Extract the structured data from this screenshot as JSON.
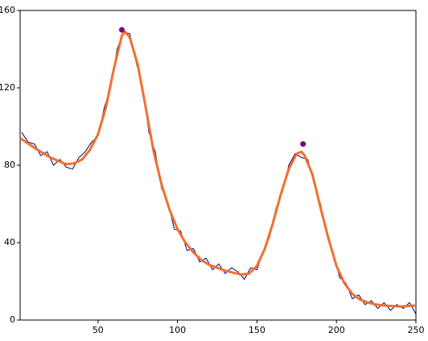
{
  "chart_data": {
    "type": "line",
    "xlim": [
      1,
      250
    ],
    "ylim": [
      0,
      160
    ],
    "xticks": [
      50,
      100,
      150,
      200,
      250
    ],
    "yticks": [
      0,
      40,
      80,
      120,
      160
    ],
    "grid": false,
    "series": [
      {
        "type": "line",
        "color": "#000080",
        "width": 1,
        "x": [
          2,
          6,
          10,
          14,
          18,
          22,
          26,
          30,
          34,
          38,
          42,
          46,
          50,
          54,
          58,
          62,
          66,
          70,
          74,
          78,
          82,
          86,
          90,
          94,
          98,
          102,
          106,
          110,
          114,
          118,
          122,
          126,
          130,
          134,
          138,
          142,
          146,
          150,
          154,
          158,
          162,
          166,
          170,
          174,
          178,
          182,
          186,
          190,
          194,
          198,
          202,
          206,
          210,
          214,
          218,
          222,
          226,
          230,
          234,
          238,
          242,
          246,
          250
        ],
        "values": [
          97,
          92,
          91,
          85,
          87,
          80,
          83,
          79,
          78,
          84,
          87,
          92,
          95,
          110,
          120,
          140,
          149,
          148,
          133,
          121,
          97,
          87,
          68,
          61,
          47,
          46,
          36,
          37,
          30,
          32,
          26,
          29,
          24,
          27,
          25,
          21,
          27,
          26,
          36,
          43,
          58,
          66,
          80,
          86,
          84,
          83,
          70,
          60,
          44,
          35,
          22,
          19,
          11,
          13,
          8,
          10,
          6,
          9,
          5,
          8,
          6,
          9,
          3
        ]
      },
      {
        "type": "line",
        "color": "#f07030",
        "width": 3,
        "x": [
          1,
          10,
          20,
          30,
          35,
          40,
          45,
          50,
          55,
          60,
          65,
          67,
          70,
          75,
          80,
          85,
          90,
          95,
          100,
          105,
          110,
          115,
          120,
          125,
          130,
          135,
          140,
          145,
          150,
          155,
          160,
          165,
          170,
          175,
          178,
          180,
          185,
          190,
          195,
          200,
          205,
          210,
          215,
          220,
          225,
          230,
          240,
          250
        ],
        "values": [
          94,
          89,
          84,
          80.5,
          81,
          83,
          88,
          96,
          110,
          130,
          147,
          149,
          146,
          132,
          110,
          87,
          70,
          57,
          47,
          40,
          35,
          31,
          28.5,
          27,
          25.5,
          24.5,
          23.5,
          24,
          28,
          37,
          50,
          65,
          78,
          86,
          87,
          85,
          75,
          58,
          42,
          28,
          19,
          13.5,
          10.5,
          9,
          8,
          7.5,
          7,
          7.5
        ]
      },
      {
        "type": "scatter",
        "color": "#800080",
        "size": 3.5,
        "x": [
          65,
          179
        ],
        "values": [
          150,
          91
        ]
      }
    ]
  }
}
